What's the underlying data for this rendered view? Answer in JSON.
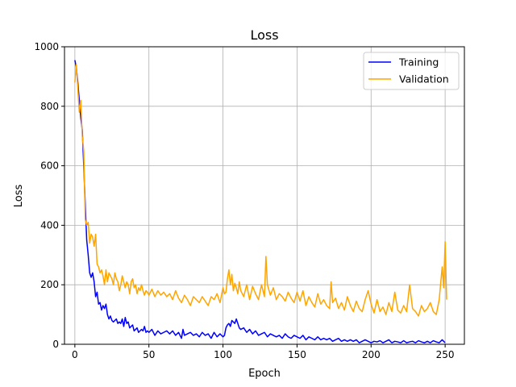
{
  "chart_data": {
    "type": "line",
    "title": "Loss",
    "xlabel": "Epoch",
    "ylabel": "Loss",
    "xlim": [
      -7,
      263
    ],
    "ylim": [
      0,
      1000
    ],
    "xticks": [
      0,
      50,
      100,
      150,
      200,
      250
    ],
    "yticks": [
      0,
      200,
      400,
      600,
      800,
      1000
    ],
    "grid": true,
    "legend_position": "top-right",
    "series": [
      {
        "name": "Training",
        "color": "#0000ff",
        "points": [
          [
            0,
            955
          ],
          [
            1,
            930
          ],
          [
            2,
            880
          ],
          [
            3,
            820
          ],
          [
            4,
            760
          ],
          [
            5,
            720
          ],
          [
            6,
            600
          ],
          [
            7,
            470
          ],
          [
            8,
            350
          ],
          [
            9,
            300
          ],
          [
            10,
            240
          ],
          [
            11,
            225
          ],
          [
            12,
            240
          ],
          [
            13,
            210
          ],
          [
            14,
            160
          ],
          [
            15,
            175
          ],
          [
            16,
            135
          ],
          [
            17,
            140
          ],
          [
            18,
            115
          ],
          [
            19,
            130
          ],
          [
            20,
            120
          ],
          [
            21,
            135
          ],
          [
            22,
            100
          ],
          [
            23,
            85
          ],
          [
            24,
            95
          ],
          [
            25,
            80
          ],
          [
            26,
            75
          ],
          [
            27,
            80
          ],
          [
            28,
            85
          ],
          [
            29,
            70
          ],
          [
            30,
            75
          ],
          [
            31,
            70
          ],
          [
            32,
            85
          ],
          [
            33,
            60
          ],
          [
            34,
            90
          ],
          [
            35,
            70
          ],
          [
            36,
            75
          ],
          [
            37,
            55
          ],
          [
            38,
            60
          ],
          [
            39,
            65
          ],
          [
            40,
            45
          ],
          [
            41,
            50
          ],
          [
            42,
            55
          ],
          [
            43,
            40
          ],
          [
            44,
            45
          ],
          [
            45,
            50
          ],
          [
            46,
            45
          ],
          [
            47,
            60
          ],
          [
            48,
            40
          ],
          [
            49,
            45
          ],
          [
            50,
            40
          ],
          [
            52,
            50
          ],
          [
            54,
            30
          ],
          [
            56,
            45
          ],
          [
            58,
            35
          ],
          [
            60,
            40
          ],
          [
            62,
            45
          ],
          [
            64,
            35
          ],
          [
            66,
            45
          ],
          [
            68,
            30
          ],
          [
            70,
            40
          ],
          [
            72,
            20
          ],
          [
            73,
            50
          ],
          [
            74,
            30
          ],
          [
            76,
            35
          ],
          [
            78,
            40
          ],
          [
            80,
            30
          ],
          [
            82,
            35
          ],
          [
            84,
            25
          ],
          [
            86,
            40
          ],
          [
            88,
            30
          ],
          [
            90,
            35
          ],
          [
            92,
            20
          ],
          [
            94,
            40
          ],
          [
            96,
            25
          ],
          [
            98,
            35
          ],
          [
            100,
            25
          ],
          [
            101,
            30
          ],
          [
            102,
            55
          ],
          [
            103,
            65
          ],
          [
            104,
            70
          ],
          [
            105,
            60
          ],
          [
            106,
            80
          ],
          [
            107,
            75
          ],
          [
            108,
            70
          ],
          [
            109,
            85
          ],
          [
            110,
            70
          ],
          [
            111,
            55
          ],
          [
            112,
            50
          ],
          [
            114,
            55
          ],
          [
            116,
            40
          ],
          [
            118,
            50
          ],
          [
            120,
            35
          ],
          [
            122,
            45
          ],
          [
            124,
            30
          ],
          [
            126,
            35
          ],
          [
            128,
            40
          ],
          [
            130,
            25
          ],
          [
            132,
            35
          ],
          [
            134,
            30
          ],
          [
            136,
            25
          ],
          [
            138,
            30
          ],
          [
            140,
            20
          ],
          [
            142,
            35
          ],
          [
            144,
            25
          ],
          [
            146,
            20
          ],
          [
            148,
            30
          ],
          [
            150,
            25
          ],
          [
            152,
            20
          ],
          [
            154,
            30
          ],
          [
            156,
            15
          ],
          [
            158,
            25
          ],
          [
            160,
            20
          ],
          [
            162,
            15
          ],
          [
            164,
            25
          ],
          [
            166,
            15
          ],
          [
            168,
            20
          ],
          [
            170,
            15
          ],
          [
            172,
            20
          ],
          [
            174,
            10
          ],
          [
            176,
            15
          ],
          [
            178,
            20
          ],
          [
            180,
            10
          ],
          [
            182,
            15
          ],
          [
            184,
            10
          ],
          [
            186,
            15
          ],
          [
            188,
            10
          ],
          [
            190,
            15
          ],
          [
            192,
            5
          ],
          [
            194,
            10
          ],
          [
            196,
            15
          ],
          [
            198,
            10
          ],
          [
            200,
            5
          ],
          [
            202,
            10
          ],
          [
            204,
            8
          ],
          [
            206,
            12
          ],
          [
            208,
            5
          ],
          [
            210,
            10
          ],
          [
            212,
            15
          ],
          [
            214,
            5
          ],
          [
            216,
            10
          ],
          [
            218,
            8
          ],
          [
            220,
            5
          ],
          [
            222,
            12
          ],
          [
            224,
            5
          ],
          [
            226,
            8
          ],
          [
            228,
            10
          ],
          [
            230,
            5
          ],
          [
            232,
            12
          ],
          [
            234,
            8
          ],
          [
            236,
            5
          ],
          [
            238,
            10
          ],
          [
            240,
            5
          ],
          [
            242,
            12
          ],
          [
            244,
            8
          ],
          [
            246,
            5
          ],
          [
            248,
            15
          ],
          [
            249,
            10
          ],
          [
            250,
            5
          ]
        ]
      },
      {
        "name": "Validation",
        "color": "#ffa500",
        "points": [
          [
            0,
            880
          ],
          [
            1,
            940
          ],
          [
            2,
            860
          ],
          [
            3,
            780
          ],
          [
            4,
            820
          ],
          [
            5,
            700
          ],
          [
            6,
            650
          ],
          [
            7,
            420
          ],
          [
            8,
            400
          ],
          [
            9,
            410
          ],
          [
            10,
            340
          ],
          [
            11,
            370
          ],
          [
            12,
            360
          ],
          [
            13,
            330
          ],
          [
            14,
            370
          ],
          [
            15,
            270
          ],
          [
            16,
            260
          ],
          [
            17,
            240
          ],
          [
            18,
            250
          ],
          [
            19,
            230
          ],
          [
            20,
            200
          ],
          [
            21,
            250
          ],
          [
            22,
            210
          ],
          [
            23,
            240
          ],
          [
            24,
            230
          ],
          [
            25,
            220
          ],
          [
            26,
            200
          ],
          [
            27,
            240
          ],
          [
            28,
            220
          ],
          [
            29,
            210
          ],
          [
            30,
            180
          ],
          [
            31,
            200
          ],
          [
            32,
            230
          ],
          [
            33,
            210
          ],
          [
            34,
            190
          ],
          [
            35,
            210
          ],
          [
            36,
            200
          ],
          [
            37,
            170
          ],
          [
            38,
            210
          ],
          [
            39,
            220
          ],
          [
            40,
            190
          ],
          [
            41,
            200
          ],
          [
            42,
            170
          ],
          [
            43,
            190
          ],
          [
            44,
            180
          ],
          [
            45,
            200
          ],
          [
            46,
            180
          ],
          [
            47,
            165
          ],
          [
            48,
            180
          ],
          [
            49,
            175
          ],
          [
            50,
            165
          ],
          [
            52,
            185
          ],
          [
            54,
            160
          ],
          [
            56,
            180
          ],
          [
            58,
            165
          ],
          [
            60,
            175
          ],
          [
            62,
            160
          ],
          [
            64,
            170
          ],
          [
            66,
            150
          ],
          [
            68,
            180
          ],
          [
            70,
            155
          ],
          [
            72,
            140
          ],
          [
            74,
            165
          ],
          [
            76,
            150
          ],
          [
            78,
            130
          ],
          [
            80,
            160
          ],
          [
            82,
            150
          ],
          [
            84,
            140
          ],
          [
            86,
            160
          ],
          [
            88,
            145
          ],
          [
            90,
            130
          ],
          [
            92,
            160
          ],
          [
            94,
            150
          ],
          [
            96,
            170
          ],
          [
            98,
            140
          ],
          [
            100,
            190
          ],
          [
            101,
            170
          ],
          [
            102,
            175
          ],
          [
            103,
            220
          ],
          [
            104,
            250
          ],
          [
            105,
            200
          ],
          [
            106,
            235
          ],
          [
            107,
            180
          ],
          [
            108,
            205
          ],
          [
            109,
            190
          ],
          [
            110,
            170
          ],
          [
            111,
            210
          ],
          [
            112,
            180
          ],
          [
            114,
            160
          ],
          [
            116,
            200
          ],
          [
            118,
            150
          ],
          [
            120,
            195
          ],
          [
            122,
            170
          ],
          [
            124,
            150
          ],
          [
            126,
            200
          ],
          [
            128,
            160
          ],
          [
            129,
            295
          ],
          [
            130,
            200
          ],
          [
            132,
            165
          ],
          [
            134,
            190
          ],
          [
            136,
            150
          ],
          [
            138,
            170
          ],
          [
            140,
            160
          ],
          [
            142,
            145
          ],
          [
            144,
            175
          ],
          [
            146,
            155
          ],
          [
            148,
            140
          ],
          [
            150,
            175
          ],
          [
            152,
            145
          ],
          [
            154,
            180
          ],
          [
            156,
            130
          ],
          [
            158,
            160
          ],
          [
            160,
            140
          ],
          [
            162,
            125
          ],
          [
            164,
            170
          ],
          [
            166,
            135
          ],
          [
            168,
            150
          ],
          [
            170,
            130
          ],
          [
            172,
            120
          ],
          [
            173,
            210
          ],
          [
            174,
            140
          ],
          [
            176,
            155
          ],
          [
            178,
            120
          ],
          [
            180,
            140
          ],
          [
            182,
            115
          ],
          [
            184,
            160
          ],
          [
            186,
            130
          ],
          [
            188,
            110
          ],
          [
            190,
            145
          ],
          [
            192,
            120
          ],
          [
            194,
            110
          ],
          [
            196,
            150
          ],
          [
            198,
            180
          ],
          [
            200,
            135
          ],
          [
            202,
            105
          ],
          [
            204,
            150
          ],
          [
            206,
            110
          ],
          [
            208,
            125
          ],
          [
            210,
            100
          ],
          [
            212,
            140
          ],
          [
            214,
            110
          ],
          [
            216,
            175
          ],
          [
            218,
            115
          ],
          [
            220,
            105
          ],
          [
            222,
            130
          ],
          [
            224,
            110
          ],
          [
            226,
            200
          ],
          [
            228,
            120
          ],
          [
            230,
            110
          ],
          [
            232,
            95
          ],
          [
            234,
            130
          ],
          [
            236,
            110
          ],
          [
            238,
            120
          ],
          [
            240,
            140
          ],
          [
            242,
            110
          ],
          [
            244,
            100
          ],
          [
            246,
            150
          ],
          [
            248,
            260
          ],
          [
            249,
            190
          ],
          [
            250,
            345
          ],
          [
            251,
            150
          ]
        ]
      }
    ]
  }
}
